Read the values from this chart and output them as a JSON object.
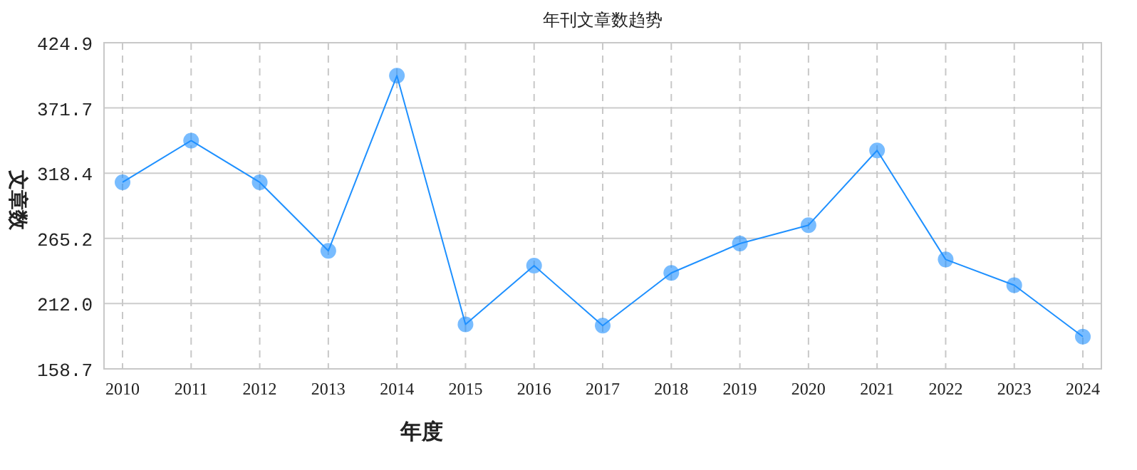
{
  "chart_data": {
    "type": "line",
    "title": "年刊文章数趋势",
    "xlabel": "年度",
    "ylabel": "文章数",
    "categories": [
      "2010",
      "2011",
      "2012",
      "2013",
      "2014",
      "2015",
      "2016",
      "2017",
      "2018",
      "2019",
      "2020",
      "2021",
      "2022",
      "2023",
      "2024"
    ],
    "series": [
      {
        "color": "#1e90ff",
        "values": [
          311,
          345,
          311,
          255,
          398,
          195,
          243,
          194,
          237,
          261,
          276,
          337,
          248,
          227,
          185
        ]
      }
    ],
    "ylim": [
      158.7,
      424.9
    ],
    "yticks": [
      158.7,
      {
        "value": 212,
        "label": "212.0"
      },
      265.2,
      318.4,
      371.7,
      424.9
    ],
    "grid": true,
    "marker": "circle",
    "line_style": "solid"
  }
}
